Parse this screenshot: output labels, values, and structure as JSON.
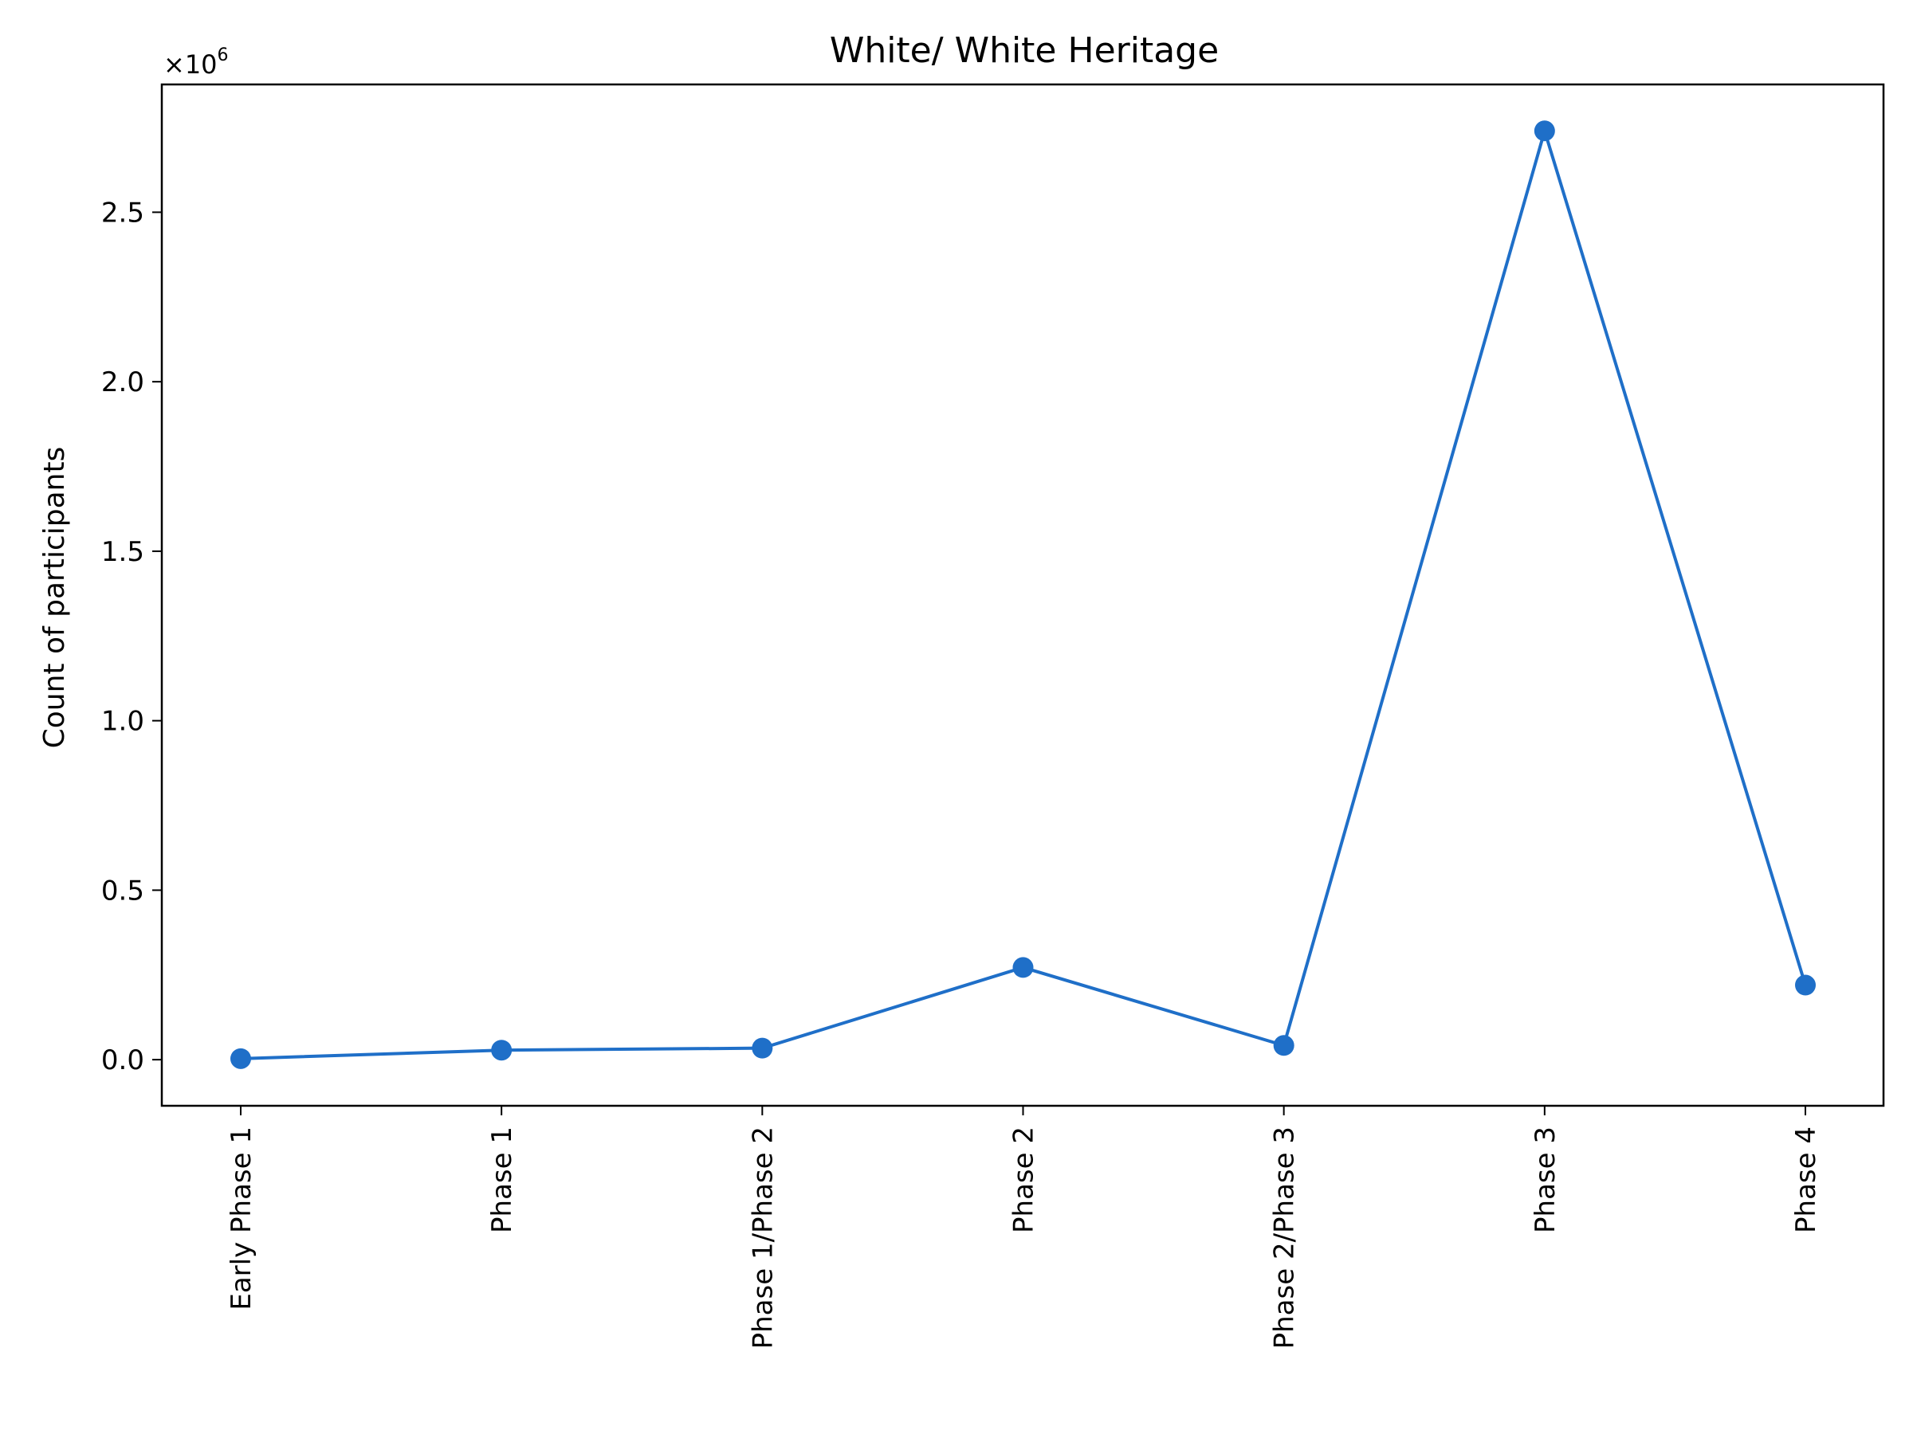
{
  "chart_data": {
    "type": "line",
    "title": "White/ White Heritage",
    "xlabel": "",
    "ylabel": "Count of participants",
    "categories": [
      "Early Phase 1",
      "Phase 1",
      "Phase 1/Phase 2",
      "Phase 2",
      "Phase 2/Phase 3",
      "Phase 3",
      "Phase 4"
    ],
    "series": [
      {
        "values": [
          3000,
          28000,
          34000,
          272000,
          42000,
          2740000,
          220000
        ]
      }
    ],
    "y_multiplier": {
      "base": "×10",
      "exponent": "6"
    },
    "y_ticks": [
      {
        "value": 0,
        "label": "0.0"
      },
      {
        "value": 500000,
        "label": "0.5"
      },
      {
        "value": 1000000,
        "label": "1.0"
      },
      {
        "value": 1500000,
        "label": "1.5"
      },
      {
        "value": 2000000,
        "label": "2.0"
      },
      {
        "value": 2500000,
        "label": "2.5"
      }
    ],
    "ylim": [
      -136000,
      2877000
    ],
    "grid": false,
    "legend": "none",
    "line_color": "#1f6fc8",
    "axis_color": "#000000"
  }
}
